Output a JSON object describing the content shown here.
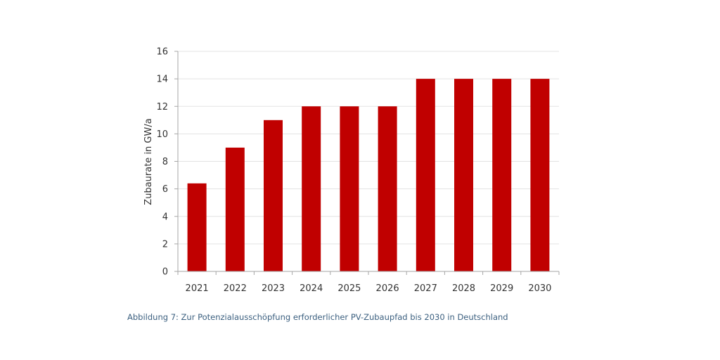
{
  "chart_data": {
    "type": "bar",
    "categories": [
      "2021",
      "2022",
      "2023",
      "2024",
      "2025",
      "2026",
      "2027",
      "2028",
      "2029",
      "2030"
    ],
    "values": [
      6.4,
      9,
      11,
      12,
      12,
      12,
      14,
      14,
      14,
      14
    ],
    "title": "",
    "xlabel": "",
    "ylabel": "Zubaurate in GW/a",
    "ylim": [
      0,
      16
    ],
    "yticks": [
      0,
      2,
      4,
      6,
      8,
      10,
      12,
      14,
      16
    ],
    "grid": true,
    "legend": "none",
    "bar_color": "#c00000",
    "grid_color": "#e3e3e3",
    "axis_color": "#a6a6a6"
  },
  "caption": "Abbildung 7: Zur Potenzialausschöpfung erforderlicher PV-Zubaupfad bis 2030 in Deutschland"
}
